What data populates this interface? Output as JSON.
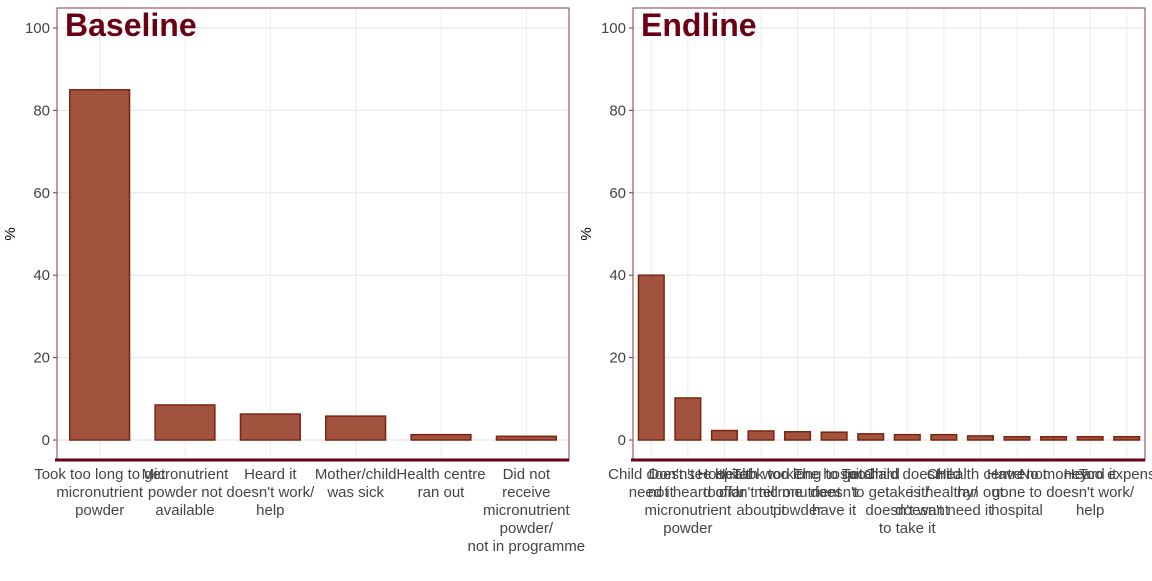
{
  "chart_data": [
    {
      "type": "bar",
      "title": "Baseline",
      "y_label": "%",
      "categories": [
        "Took too long to get\nmicronutrient\npowder",
        "Micronutrient\npowder not\navailable",
        "Heard it\ndoesn't work/\nhelp",
        "Mother/child\nwas sick",
        "Health centre\nran out",
        "Did not\nreceive\nmicronutrient\npowder/\nnot in programme"
      ],
      "values": [
        85,
        8.5,
        6.3,
        5.8,
        1.3,
        0.9
      ],
      "color": "#9c4a33",
      "ylim": [
        -4.85,
        104.85
      ],
      "yticks": [
        0,
        20,
        40,
        60,
        80,
        100
      ],
      "grid": true
    },
    {
      "type": "bar",
      "title": "Endline",
      "y_label": "%",
      "categories": [
        "Child doesn't\nneed it",
        "Don't see it/\nnot heard of\nmicronutrient\npowder",
        "Hospital\ntoo far",
        "Health worker\ndidn't tell me\nabout it",
        "Took too long to get\nmicronutrient\npowder",
        "The hospital\ndoesn't\nhave it",
        "Too hard\nto get",
        "Child doesn't\ntake it/\ndoesn't want\nto take it",
        "Child\nis healthy/\ndoesn't need it",
        "Health centre\nran out",
        "Have not\ngone to\nhospital",
        "No money",
        "Heard it\ndoesn't work/\nhelp",
        "Too expensive"
      ],
      "values": [
        40,
        10.2,
        2.3,
        2.2,
        2.0,
        1.9,
        1.5,
        1.3,
        1.3,
        1.0,
        0.8,
        0.8,
        0.8,
        0.8
      ],
      "color": "#9c4a33",
      "ylim": [
        -4.85,
        104.85
      ],
      "yticks": [
        0,
        20,
        40,
        60,
        80,
        100
      ],
      "grid": true
    }
  ]
}
